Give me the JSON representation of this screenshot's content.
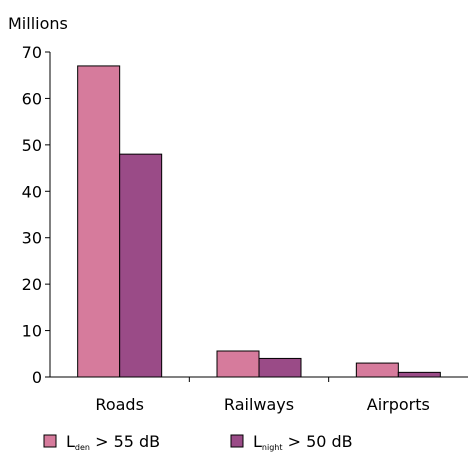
{
  "chart_data": {
    "type": "bar",
    "title": "",
    "xlabel": "",
    "ylabel": "Millions",
    "ylim": [
      0,
      70
    ],
    "yticks": [
      0,
      10,
      20,
      30,
      40,
      50,
      60,
      70
    ],
    "categories": [
      "Roads",
      "Railways",
      "Airports"
    ],
    "series": [
      {
        "name": "Lden > 55 dB",
        "legend_main": "L",
        "legend_sub": "den",
        "legend_rest": " > 55 dB",
        "color": "#d67b9c",
        "values": [
          67,
          5.6,
          3
        ]
      },
      {
        "name": "Lnight > 50 dB",
        "legend_main": "L",
        "legend_sub": "night",
        "legend_rest": " > 50 dB",
        "color": "#9a4b87",
        "values": [
          48,
          4,
          1
        ]
      }
    ],
    "grid": false,
    "legend_placement": "bottom"
  }
}
